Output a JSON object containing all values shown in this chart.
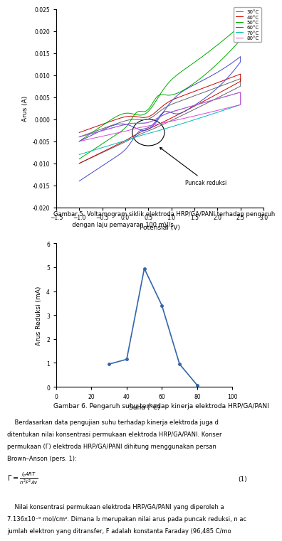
{
  "fig_width": 3.83,
  "fig_height": 7.76,
  "bg_color": "#ffffff",
  "cv_xlim": [
    -1.5,
    3.0
  ],
  "cv_ylim": [
    -0.02,
    0.025
  ],
  "cv_xlabel": "Potensial (V)",
  "cv_ylabel": "Arus (A)",
  "cv_xticks": [
    -1.5,
    -1.0,
    -0.5,
    0.0,
    0.5,
    1.0,
    1.5,
    2.0,
    2.5,
    3.0
  ],
  "cv_yticks": [
    -0.02,
    -0.015,
    -0.01,
    -0.005,
    0.0,
    0.005,
    0.01,
    0.015,
    0.02,
    0.025
  ],
  "legend_labels": [
    "30°C",
    "40°C",
    "50°C",
    "60°C",
    "70°C",
    "80°C"
  ],
  "legend_colors": [
    "#666666",
    "#cc0000",
    "#00aa00",
    "#4444cc",
    "#00bbbb",
    "#dd44dd"
  ],
  "annotation_text": "Puncak reduksi",
  "caption1_line1": "Gambar 5. Voltamogram siklik elektroda HRP/GA/PANI terhadap pengaruh",
  "caption1_line2": "          dengan laju pemayaran 100 mV/s",
  "bar_xlabel": "Suhu (°C)",
  "bar_ylabel": "Arus Reduksi (mA)",
  "bar_xlim": [
    0,
    100
  ],
  "bar_ylim": [
    0,
    6
  ],
  "bar_xticks": [
    0,
    20,
    40,
    60,
    80,
    100
  ],
  "bar_yticks": [
    0,
    1,
    2,
    3,
    4,
    5,
    6
  ],
  "bar_x": [
    30,
    40,
    50,
    60,
    70,
    80
  ],
  "bar_y": [
    0.95,
    1.15,
    4.95,
    3.4,
    0.95,
    0.07
  ],
  "bar_color": "#3366aa",
  "caption2": "Gambar 6. Pengaruh suhu terhadap kinerja elektroda HRP/GA/PANI",
  "body_text1": "    Berdasarkan data pengujian suhu terhadap kinerja elektroda juga d",
  "body_text2": "ditentukan nilai konsentrasi permukaan elektroda HRP/GA/PANI. Konser",
  "body_text3": "permukaan (Γ) elektroda HRP/GA/PANI dihitung menggunakan persan",
  "body_text4": "Brown–Anson (pers. 1):",
  "formula_lhs": "Γ =",
  "formula_rhs_num": "I₄RT",
  "formula_rhs_den": "n²F²Av",
  "formula_eq_num": "(1)",
  "body_text5": "    Nilai konsentrasi permukaan elektroda HRP/GA/PANI yang diperoleh a",
  "body_text6": "7.136x10⁻⁹ mol/cm². Dimana I₂ merupakan nilai arus pada puncak reduksi, n ac",
  "body_text7": "jumlah elektron yang ditransfer, F adalah konstanta Faraday (96,485 C/mo"
}
